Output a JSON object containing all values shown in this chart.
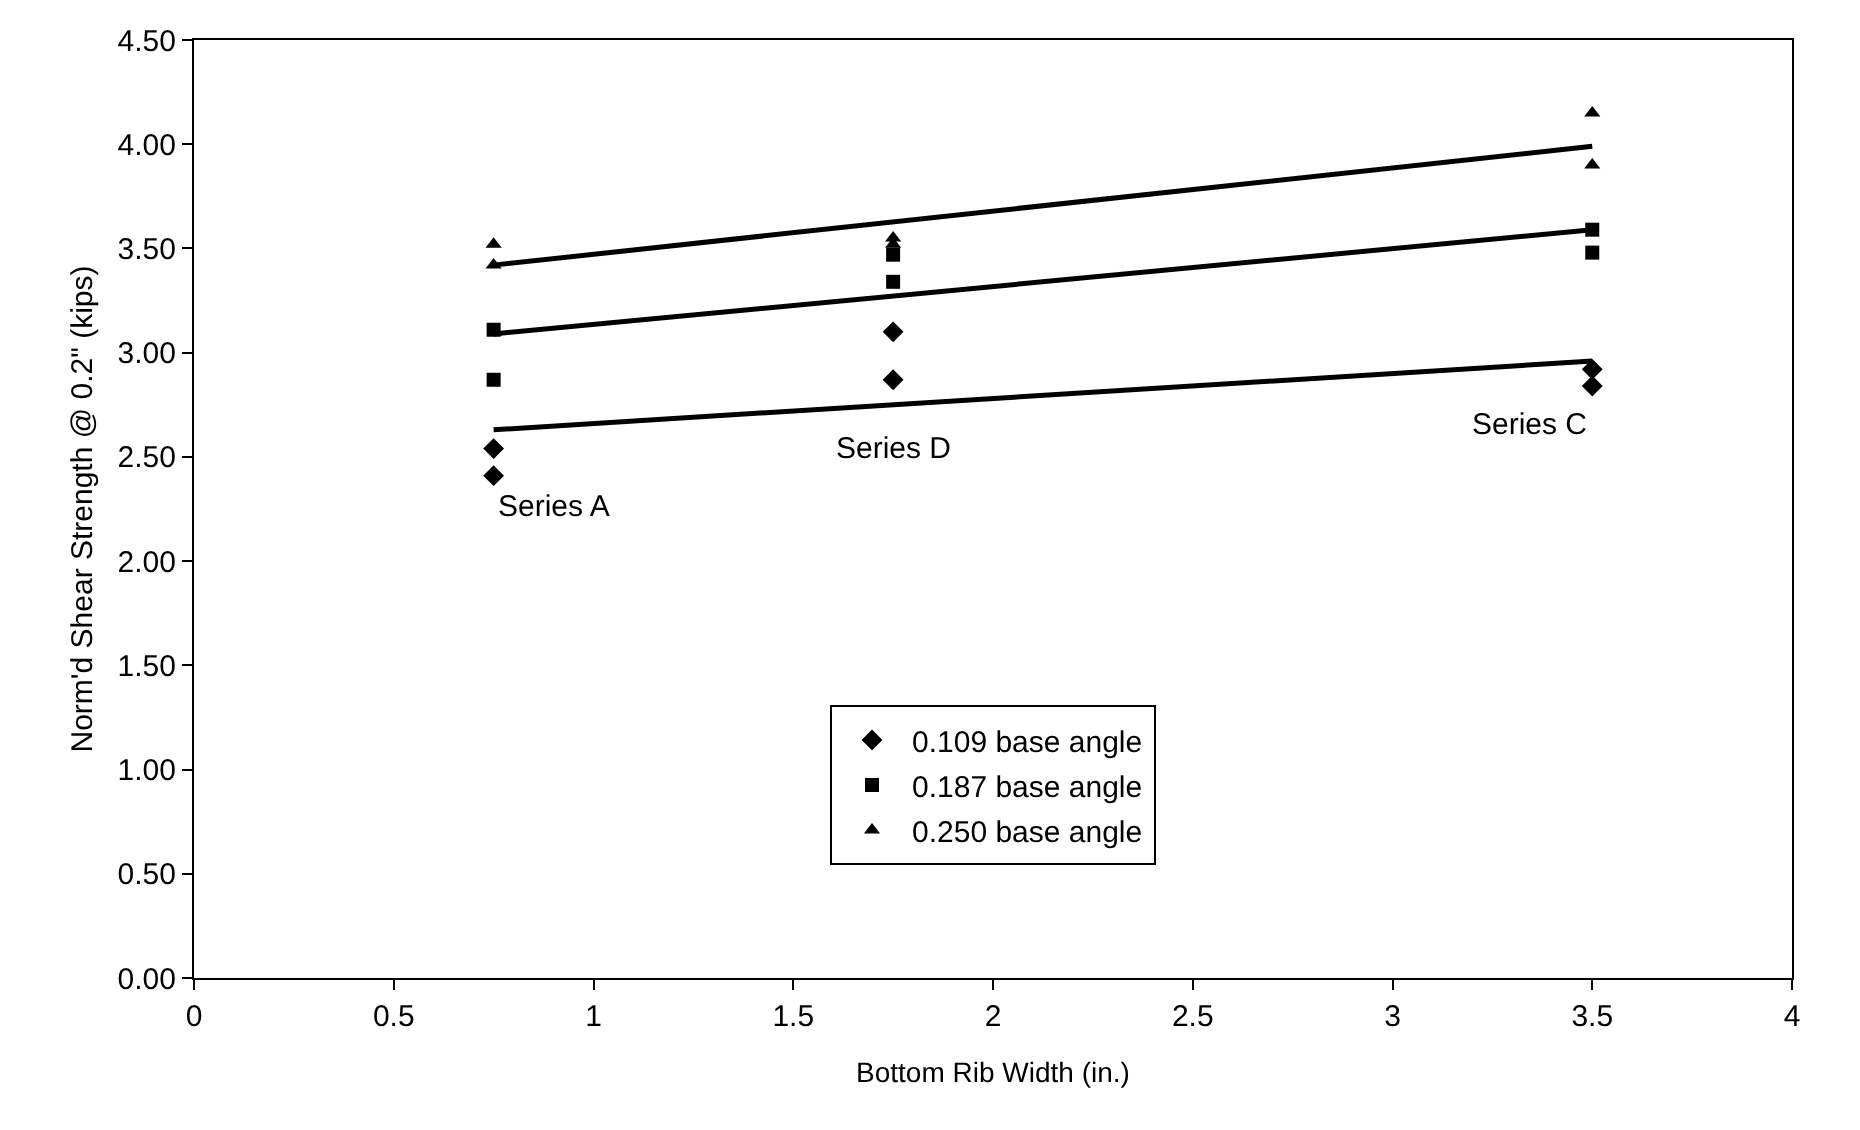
{
  "chart_data": {
    "type": "scatter",
    "xlabel": "Bottom Rib Width (in.)",
    "ylabel": "Norm'd Shear Strength @ 0.2\" (kips)",
    "xlim": [
      0,
      4
    ],
    "xticks": [
      0,
      0.5,
      1,
      1.5,
      2,
      2.5,
      3,
      3.5,
      4
    ],
    "ylim": [
      0,
      4.5
    ],
    "yticks": [
      {
        "value": 0,
        "label": "0.00"
      },
      {
        "value": 0.5,
        "label": "0.50"
      },
      {
        "value": 1,
        "label": "1.00"
      },
      {
        "value": 1.5,
        "label": "1.50"
      },
      {
        "value": 2,
        "label": "2.00"
      },
      {
        "value": 2.5,
        "label": "2.50"
      },
      {
        "value": 3,
        "label": "3.00"
      },
      {
        "value": 3.5,
        "label": "3.50"
      },
      {
        "value": 4,
        "label": "4.00"
      },
      {
        "value": 4.5,
        "label": "4.50"
      }
    ],
    "grid": false,
    "legend": "bottom",
    "series": [
      {
        "name": "0.109 base angle",
        "color": "#000000",
        "marker": "diamond",
        "x": [
          0.75,
          0.75,
          1.75,
          1.75,
          3.5,
          3.5
        ],
        "values": [
          2.54,
          2.41,
          3.1,
          2.87,
          2.92,
          2.84
        ]
      },
      {
        "name": "0.187 base angle",
        "color": "#000000",
        "marker": "square",
        "x": [
          0.75,
          0.75,
          1.75,
          1.75,
          3.5,
          3.5
        ],
        "values": [
          3.11,
          2.87,
          3.47,
          3.34,
          3.59,
          3.48
        ]
      },
      {
        "name": "0.250 base angle",
        "color": "#000000",
        "marker": "triangle",
        "x": [
          0.75,
          0.75,
          1.75,
          1.75,
          3.5,
          3.5
        ],
        "values": [
          3.52,
          3.42,
          3.55,
          3.52,
          4.15,
          3.9
        ]
      },
      {
        "type": "line",
        "color": "#000000",
        "x": [
          0.75,
          3.5
        ],
        "values": [
          2.63,
          2.96
        ]
      },
      {
        "type": "line",
        "color": "#000000",
        "x": [
          0.75,
          3.5
        ],
        "values": [
          3.09,
          3.59
        ]
      },
      {
        "type": "line",
        "color": "#000000",
        "x": [
          0.75,
          3.5
        ],
        "values": [
          3.42,
          3.99
        ]
      }
    ],
    "annotations": [
      "Series A",
      "Series D",
      "Series C"
    ]
  }
}
